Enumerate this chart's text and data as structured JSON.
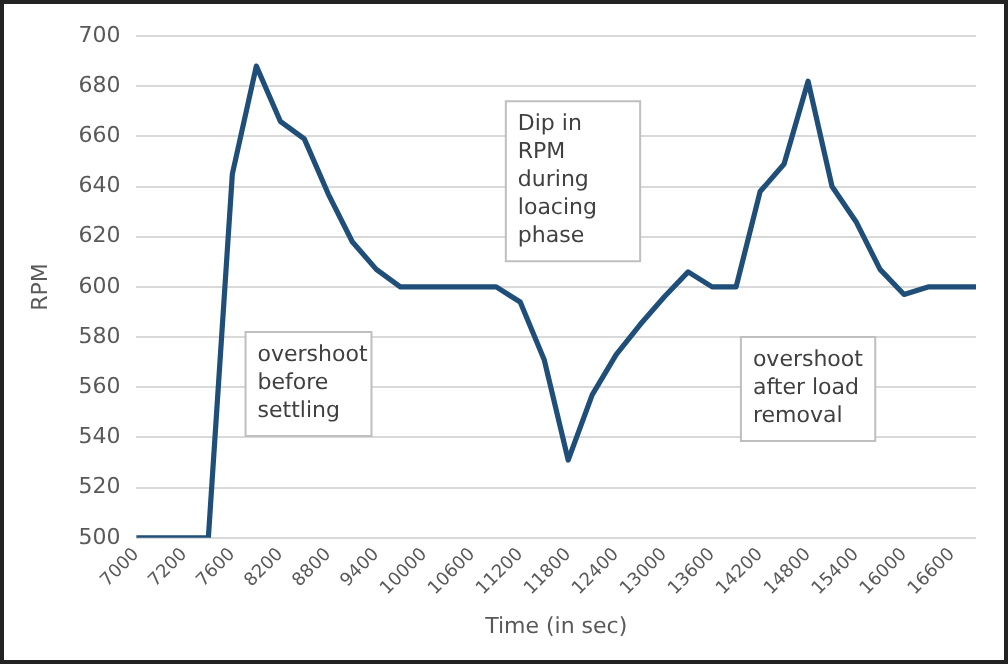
{
  "chart_data": {
    "type": "line",
    "xlabel": "Time (in sec)",
    "ylabel": "RPM",
    "categories": [
      "7000",
      null,
      "7200",
      null,
      "7600",
      null,
      "8200",
      null,
      "8800",
      null,
      "9400",
      null,
      "10000",
      null,
      "10600",
      null,
      "11200",
      null,
      "11800",
      null,
      "12400",
      null,
      "13000",
      null,
      "13600",
      null,
      "14200",
      null,
      "14800",
      null,
      "15400",
      null,
      "16000",
      null,
      "16600",
      null
    ],
    "series": [
      {
        "color": "#1f4e79",
        "values": [
          500,
          500,
          500,
          500,
          645,
          688,
          666,
          659,
          637,
          618,
          607,
          600,
          600,
          600,
          600,
          600,
          594,
          571,
          531,
          557,
          573,
          585,
          596,
          606,
          600,
          600,
          638,
          649,
          682,
          640,
          626,
          607,
          597,
          600,
          600,
          600
        ]
      }
    ],
    "ylim": [
      500,
      700
    ],
    "yticks": [
      500,
      520,
      540,
      560,
      580,
      600,
      620,
      640,
      660,
      680,
      700
    ],
    "grid": "y",
    "legend": false,
    "marker": "none",
    "line_style": "solid",
    "annotations": [
      "overshoot before settling",
      "Dip in RPM during loacing phase",
      "overshoot after load removal"
    ]
  }
}
